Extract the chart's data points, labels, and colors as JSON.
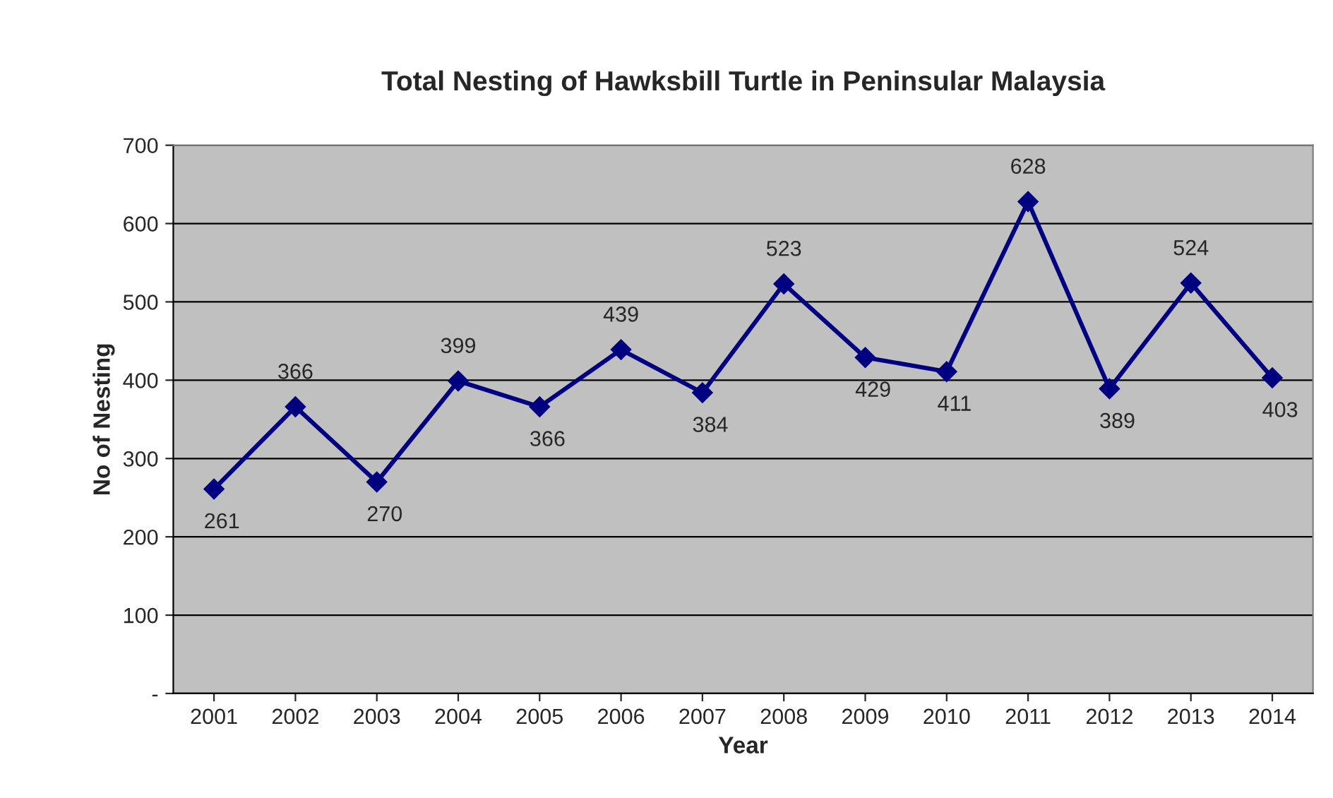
{
  "chart_data": {
    "type": "line",
    "title": "Total Nesting of Hawksbill Turtle in Peninsular Malaysia",
    "xlabel": "Year",
    "ylabel": "No of Nesting",
    "categories": [
      "2001",
      "2002",
      "2003",
      "2004",
      "2005",
      "2006",
      "2007",
      "2008",
      "2009",
      "2010",
      "2011",
      "2012",
      "2013",
      "2014"
    ],
    "series": [
      {
        "color": "#000080",
        "values": [
          261,
          366,
          270,
          399,
          366,
          439,
          384,
          523,
          429,
          411,
          628,
          389,
          524,
          403
        ]
      }
    ],
    "ylim": [
      0,
      700
    ],
    "yticks": [
      {
        "value": 0,
        "label": "-"
      },
      100,
      200,
      300,
      400,
      500,
      600,
      700
    ],
    "grid": "y",
    "marker": "diamond",
    "line_style": "solid",
    "data_labels": true,
    "legend": false
  }
}
